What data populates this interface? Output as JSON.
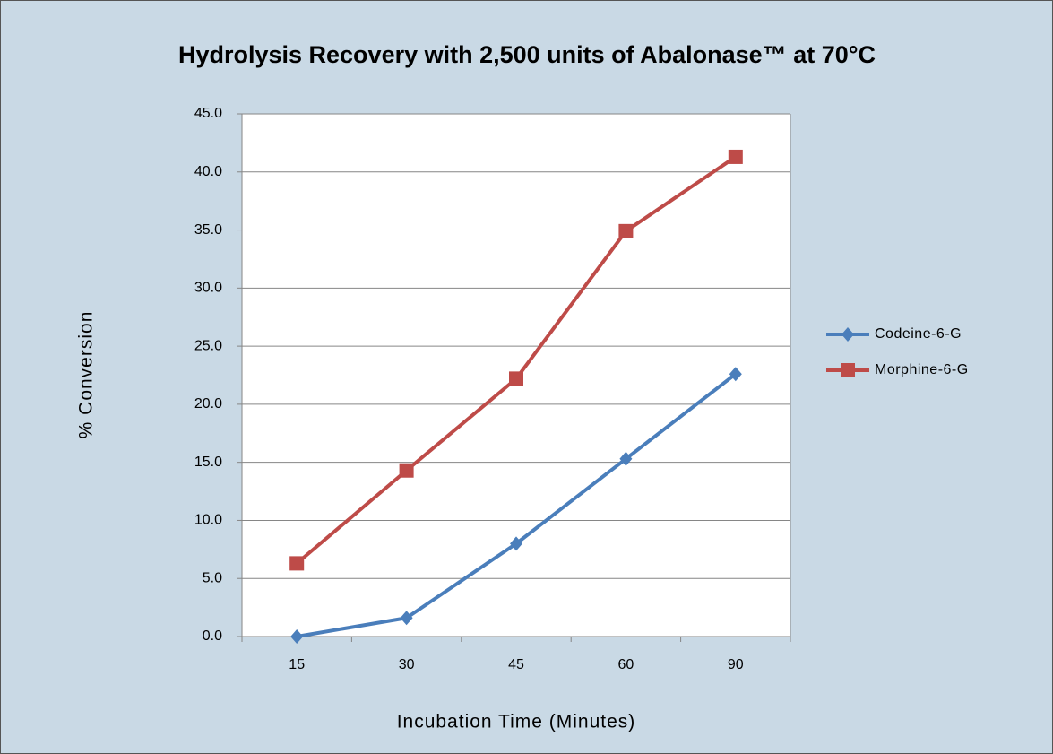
{
  "chart_data": {
    "type": "line",
    "title": "Hydrolysis Recovery with 2,500 units of Abalonase™ at 70°C",
    "x_label": "Incubation Time (Minutes)",
    "y_label": "% Conversion",
    "categories": [
      "15",
      "30",
      "45",
      "60",
      "90"
    ],
    "series": [
      {
        "name": "Codeine-6-G",
        "color": "#4a7ebb",
        "marker": "diamond",
        "values": [
          0,
          1.6,
          8.0,
          15.3,
          22.6
        ]
      },
      {
        "name": "Morphine-6-G",
        "color": "#be4b48",
        "marker": "square",
        "values": [
          6.3,
          14.3,
          22.2,
          34.9,
          41.3
        ]
      }
    ],
    "ylim": [
      0,
      45
    ],
    "yticks": [
      {
        "value": 0,
        "label": "0.0"
      },
      {
        "value": 5,
        "label": "5.0"
      },
      {
        "value": 10,
        "label": "10.0"
      },
      {
        "value": 15,
        "label": "15.0"
      },
      {
        "value": 20,
        "label": "20.0"
      },
      {
        "value": 25,
        "label": "25.0"
      },
      {
        "value": 30,
        "label": "30.0"
      },
      {
        "value": 35,
        "label": "35.0"
      },
      {
        "value": 40,
        "label": "40.0"
      },
      {
        "value": 45,
        "label": "45.0"
      }
    ],
    "grid": true,
    "legend": "right"
  }
}
